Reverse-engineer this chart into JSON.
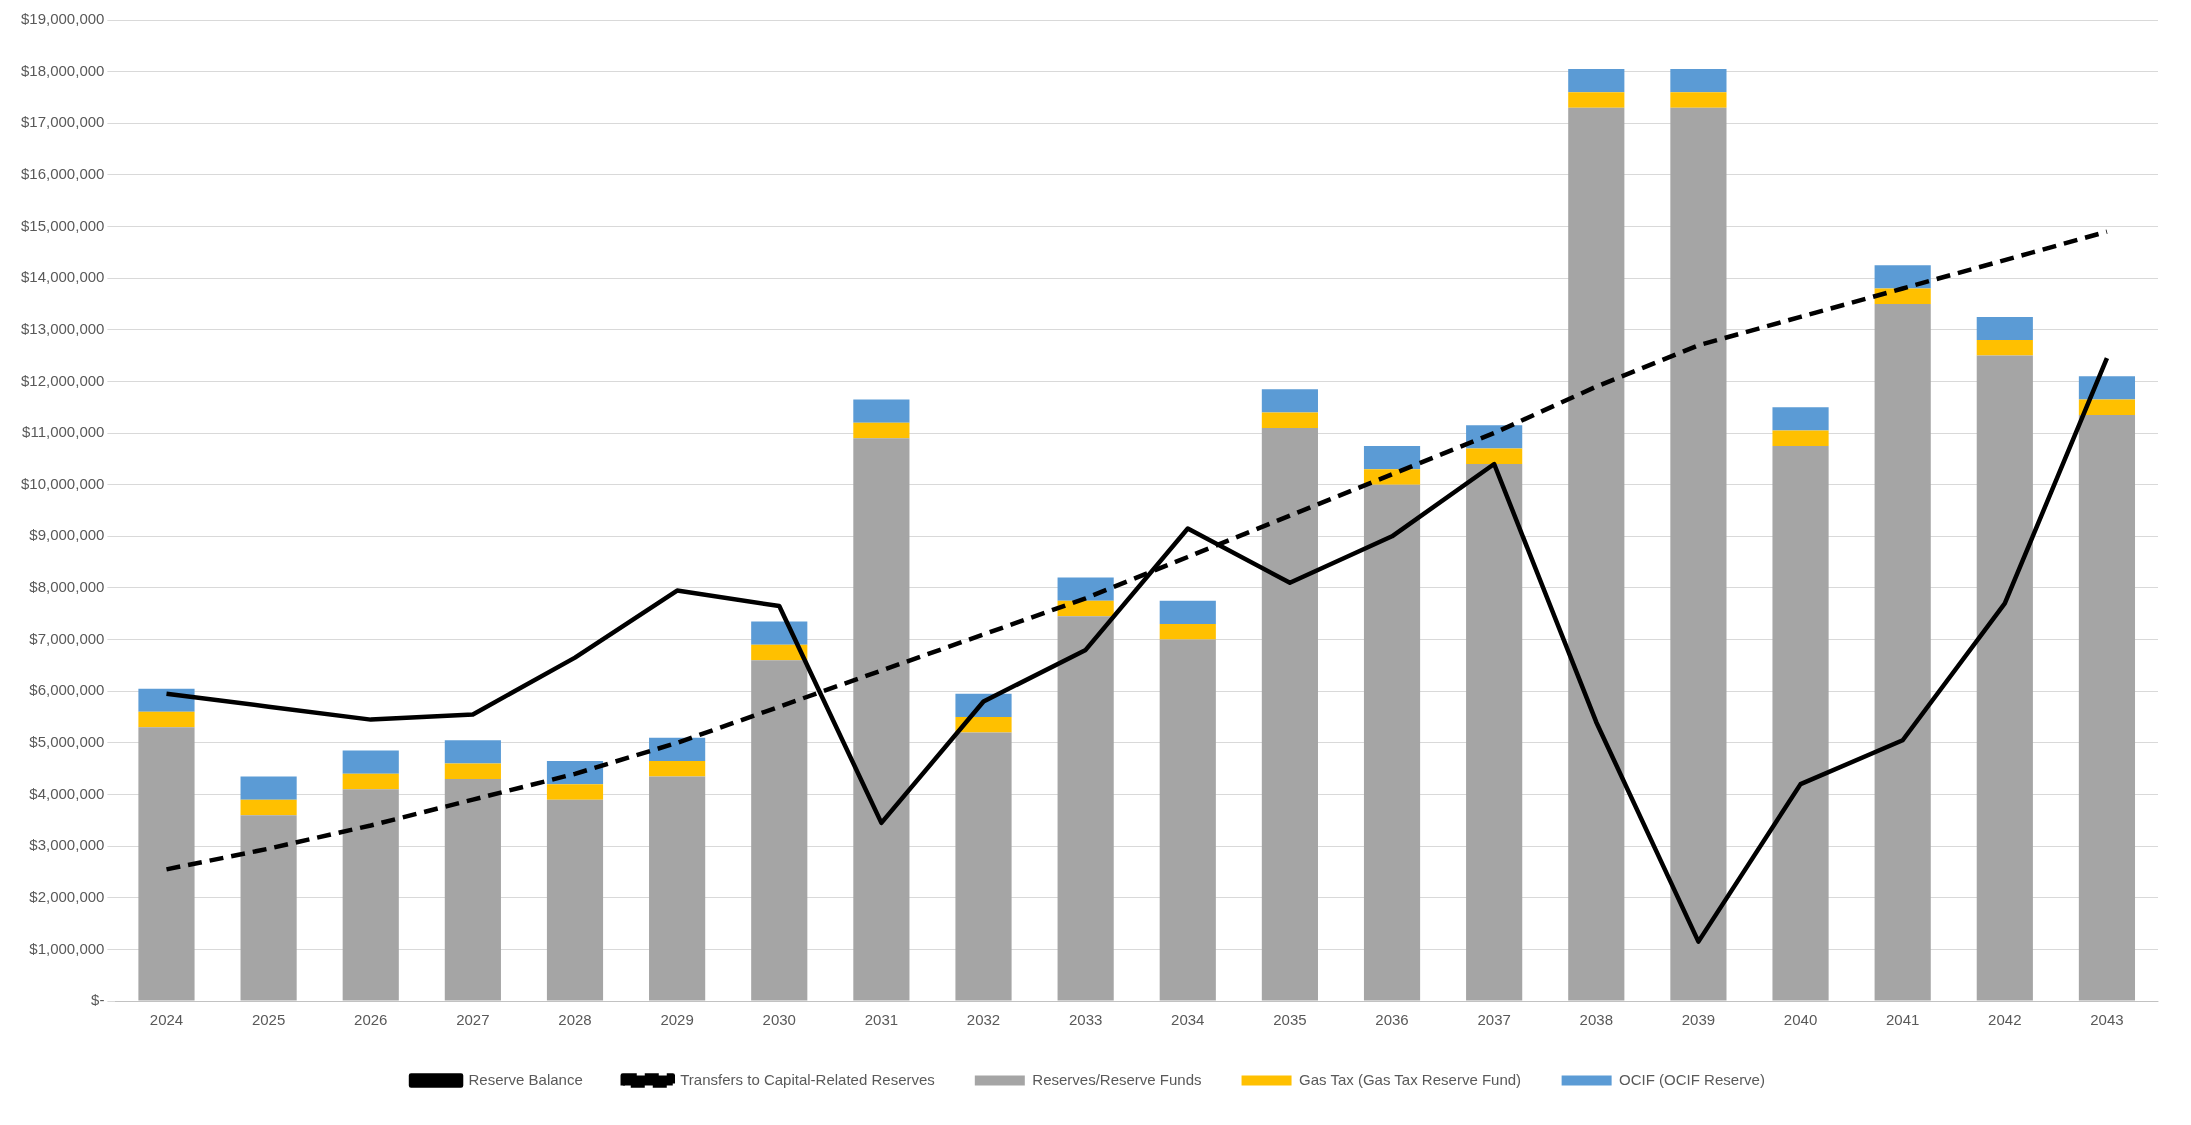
{
  "chart_data": {
    "type": "bar",
    "stacked": true,
    "categories": [
      "2024",
      "2025",
      "2026",
      "2027",
      "2028",
      "2029",
      "2030",
      "2031",
      "2032",
      "2033",
      "2034",
      "2035",
      "2036",
      "2037",
      "2038",
      "2039",
      "2040",
      "2041",
      "2042",
      "2043"
    ],
    "series": [
      {
        "name": "Reserves/Reserve Funds",
        "color": "#a5a5a5",
        "values": [
          5300000,
          3600000,
          4100000,
          4300000,
          3900000,
          4350000,
          6600000,
          10900000,
          5200000,
          7450000,
          7000000,
          11100000,
          10000000,
          10400000,
          17300000,
          17300000,
          10750000,
          13500000,
          12500000,
          11350000
        ]
      },
      {
        "name": "Gas Tax (Gas Tax Reserve Fund)",
        "color": "#ffc000",
        "values": [
          300000,
          300000,
          300000,
          300000,
          300000,
          300000,
          300000,
          300000,
          300000,
          300000,
          300000,
          300000,
          300000,
          300000,
          300000,
          300000,
          300000,
          300000,
          300000,
          300000
        ]
      },
      {
        "name": "OCIF (OCIF Reserve)",
        "color": "#5b9bd5",
        "values": [
          450000,
          450000,
          450000,
          450000,
          450000,
          450000,
          450000,
          450000,
          450000,
          450000,
          450000,
          450000,
          450000,
          450000,
          450000,
          450000,
          450000,
          450000,
          450000,
          450000
        ]
      },
      {
        "name": "Reserve Balance",
        "type": "line",
        "line_style": "solid",
        "color": "#000000",
        "values": [
          5950000,
          5700000,
          5450000,
          5550000,
          6650000,
          7950000,
          7650000,
          3450000,
          5800000,
          6800000,
          9150000,
          8100000,
          9000000,
          10400000,
          5400000,
          1150000,
          4200000,
          5050000,
          7700000,
          12450000
        ]
      },
      {
        "name": "Transfers to Capital-Related Reserves",
        "type": "line",
        "line_style": "dashed",
        "color": "#000000",
        "values": [
          2550000,
          2950000,
          3400000,
          3900000,
          4400000,
          5000000,
          5700000,
          6400000,
          7100000,
          7800000,
          8600000,
          9400000,
          10200000,
          11000000,
          11900000,
          12700000,
          13250000,
          13800000,
          14350000,
          14900000
        ]
      }
    ],
    "ylim": [
      0,
      19000000
    ],
    "yticks": [
      {
        "value": 0,
        "label": "$-"
      },
      {
        "value": 1000000,
        "label": "$1,000,000"
      },
      {
        "value": 2000000,
        "label": "$2,000,000"
      },
      {
        "value": 3000000,
        "label": "$3,000,000"
      },
      {
        "value": 4000000,
        "label": "$4,000,000"
      },
      {
        "value": 5000000,
        "label": "$5,000,000"
      },
      {
        "value": 6000000,
        "label": "$6,000,000"
      },
      {
        "value": 7000000,
        "label": "$7,000,000"
      },
      {
        "value": 8000000,
        "label": "$8,000,000"
      },
      {
        "value": 9000000,
        "label": "$9,000,000"
      },
      {
        "value": 10000000,
        "label": "$10,000,000"
      },
      {
        "value": 11000000,
        "label": "$11,000,000"
      },
      {
        "value": 12000000,
        "label": "$12,000,000"
      },
      {
        "value": 13000000,
        "label": "$13,000,000"
      },
      {
        "value": 14000000,
        "label": "$14,000,000"
      },
      {
        "value": 15000000,
        "label": "$15,000,000"
      },
      {
        "value": 16000000,
        "label": "$16,000,000"
      },
      {
        "value": 17000000,
        "label": "$17,000,000"
      },
      {
        "value": 18000000,
        "label": "$18,000,000"
      },
      {
        "value": 19000000,
        "label": "$19,000,000"
      }
    ],
    "grid": "y",
    "legend": "bottom",
    "marker": "none"
  }
}
